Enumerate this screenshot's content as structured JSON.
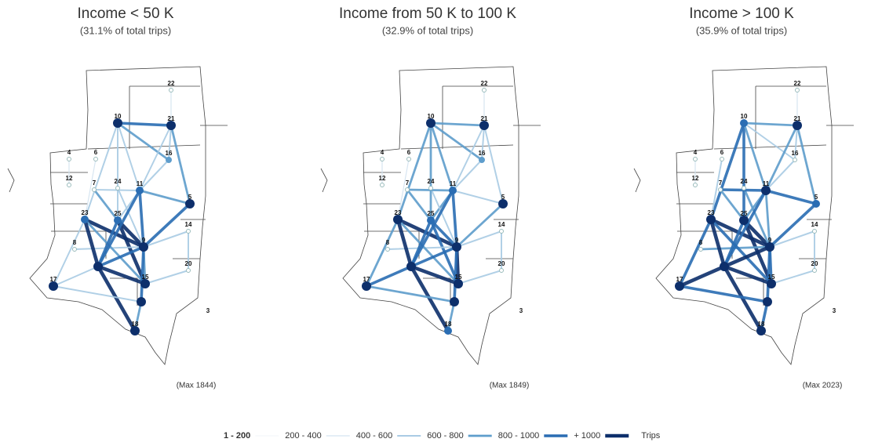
{
  "panels": [
    {
      "title": "Income < 50 K",
      "subtitle": "(31.1% of total trips)",
      "max_label": "(Max 1844)",
      "nodes": [
        "22",
        "10",
        "21",
        "16",
        "4",
        "6",
        "12",
        "7",
        "24",
        "11",
        "5",
        "23",
        "25",
        "9",
        "14",
        "8",
        "20",
        "17",
        "15",
        "18",
        "3"
      ]
    },
    {
      "title": "Income from 50 K to 100 K",
      "subtitle": "(32.9% of total trips)",
      "max_label": "(Max 1849)",
      "nodes": [
        "22",
        "10",
        "21",
        "16",
        "4",
        "6",
        "12",
        "7",
        "24",
        "11",
        "5",
        "23",
        "25",
        "9",
        "14",
        "8",
        "20",
        "17",
        "15",
        "18",
        "3"
      ]
    },
    {
      "title": "Income > 100 K",
      "subtitle": "(35.9% of total trips)",
      "max_label": "(Max 2023)",
      "nodes": [
        "22",
        "10",
        "21",
        "16",
        "4",
        "6",
        "12",
        "7",
        "24",
        "11",
        "5",
        "23",
        "25",
        "9",
        "14",
        "8",
        "20",
        "17",
        "15",
        "18",
        "3"
      ]
    }
  ],
  "legend": {
    "items": [
      {
        "label": "1 - 200",
        "color": "#eef3f8"
      },
      {
        "label": "200 - 400",
        "color": "#d3e3f0"
      },
      {
        "label": "400 - 600",
        "color": "#a9cbe4"
      },
      {
        "label": "600 - 800",
        "color": "#5e9dcc"
      },
      {
        "label": "800 - 1000",
        "color": "#2a6db3"
      },
      {
        "label": "+ 1000",
        "color": "#0d2f6b"
      }
    ],
    "unit": "Trips"
  }
}
